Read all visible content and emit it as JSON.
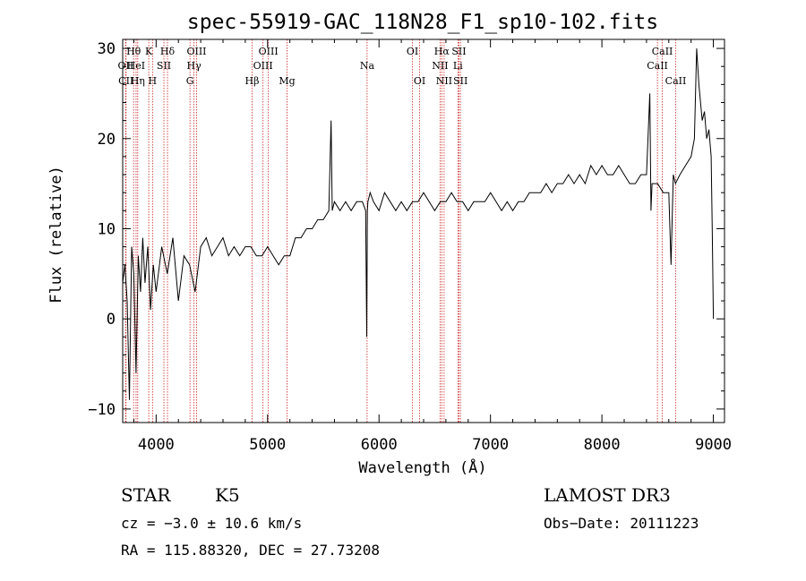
{
  "chart_data": {
    "type": "line",
    "title": "spec-55919-GAC_118N28_F1_sp10-102.fits",
    "xlabel": "Wavelength (Å)",
    "ylabel": "Flux (relative)",
    "xlim": [
      3700,
      9100
    ],
    "ylim": [
      -11.5,
      31
    ],
    "xticks": [
      4000,
      5000,
      6000,
      7000,
      8000,
      9000
    ],
    "yticks": [
      -10,
      0,
      10,
      20,
      30
    ],
    "grid": false,
    "series": [
      {
        "x": [
          3700,
          3720,
          3740,
          3760,
          3780,
          3800,
          3820,
          3840,
          3860,
          3880,
          3900,
          3925,
          3950,
          3975,
          4000,
          4050,
          4100,
          4150,
          4200,
          4250,
          4300,
          4350,
          4400,
          4450,
          4500,
          4550,
          4600,
          4650,
          4700,
          4750,
          4800,
          4850,
          4900,
          4950,
          5000,
          5050,
          5100,
          5150,
          5200,
          5250,
          5300,
          5350,
          5400,
          5450,
          5500,
          5550,
          5570,
          5580,
          5600,
          5650,
          5700,
          5750,
          5800,
          5850,
          5880,
          5890,
          5895,
          5900,
          5920,
          5950,
          6000,
          6050,
          6100,
          6150,
          6200,
          6250,
          6300,
          6350,
          6400,
          6450,
          6500,
          6550,
          6600,
          6650,
          6700,
          6750,
          6800,
          6850,
          6900,
          6950,
          7000,
          7050,
          7100,
          7150,
          7200,
          7250,
          7300,
          7350,
          7400,
          7450,
          7500,
          7550,
          7600,
          7650,
          7700,
          7750,
          7800,
          7850,
          7900,
          7950,
          8000,
          8050,
          8100,
          8150,
          8200,
          8250,
          8300,
          8350,
          8400,
          8430,
          8440,
          8450,
          8500,
          8550,
          8600,
          8620,
          8640,
          8660,
          8700,
          8750,
          8800,
          8830,
          8850,
          8870,
          8900,
          8920,
          8940,
          8960,
          8980,
          8990,
          9000
        ],
        "y": [
          4,
          6,
          2,
          -9,
          8,
          5,
          -6,
          7,
          3,
          9,
          4,
          8,
          1,
          6,
          3,
          8,
          5,
          9,
          2,
          7,
          6,
          3,
          8,
          9,
          7,
          8,
          9,
          7,
          8,
          7,
          8,
          8,
          7,
          7,
          8,
          7,
          6,
          7,
          7,
          9,
          9,
          10,
          10,
          11,
          11,
          12,
          22,
          12,
          13,
          12,
          13,
          12,
          13,
          13,
          12,
          -2,
          12,
          13,
          14,
          13,
          12,
          14,
          13,
          12,
          13,
          12,
          13,
          13,
          14,
          13,
          12,
          13,
          13,
          14,
          13,
          13,
          12,
          13,
          13,
          13,
          14,
          13,
          12,
          13,
          12,
          13,
          13,
          14,
          14,
          14,
          15,
          14,
          15,
          15,
          16,
          15,
          16,
          15,
          17,
          16,
          17,
          16,
          16,
          17,
          16,
          15,
          15,
          16,
          16,
          25,
          12,
          15,
          15,
          14,
          14,
          6,
          16,
          15,
          16,
          17,
          18,
          20,
          30,
          26,
          22,
          23,
          20,
          21,
          18,
          10,
          0
        ]
      }
    ],
    "spectral_lines": [
      {
        "label": "Hθ",
        "x": 3798,
        "row": 0
      },
      {
        "label": "OII",
        "x": 3727,
        "row": 1
      },
      {
        "label": "CII",
        "x": 3730,
        "row": 2
      },
      {
        "label": "HeI",
        "x": 3820,
        "row": 1
      },
      {
        "label": "Hη",
        "x": 3835,
        "row": 2
      },
      {
        "label": "K",
        "x": 3934,
        "row": 0
      },
      {
        "label": "H",
        "x": 3968,
        "row": 2
      },
      {
        "label": "SII",
        "x": 4070,
        "row": 1
      },
      {
        "label": "Hδ",
        "x": 4102,
        "row": 0
      },
      {
        "label": "OIII",
        "x": 4363,
        "row": 0
      },
      {
        "label": "Hγ",
        "x": 4340,
        "row": 1
      },
      {
        "label": "G",
        "x": 4304,
        "row": 2
      },
      {
        "label": "OIII",
        "x": 5007,
        "row": 0
      },
      {
        "label": "OIII",
        "x": 4959,
        "row": 1
      },
      {
        "label": "Hβ",
        "x": 4861,
        "row": 2
      },
      {
        "label": "Mg",
        "x": 5175,
        "row": 2
      },
      {
        "label": "Na",
        "x": 5893,
        "row": 1
      },
      {
        "label": "OI",
        "x": 6300,
        "row": 0
      },
      {
        "label": "OI",
        "x": 6364,
        "row": 2
      },
      {
        "label": "Hα",
        "x": 6563,
        "row": 0
      },
      {
        "label": "NII",
        "x": 6548,
        "row": 1
      },
      {
        "label": "NII",
        "x": 6584,
        "row": 2
      },
      {
        "label": "SII",
        "x": 6717,
        "row": 0
      },
      {
        "label": "Li",
        "x": 6708,
        "row": 1
      },
      {
        "label": "SII",
        "x": 6731,
        "row": 2
      },
      {
        "label": "CaII",
        "x": 8542,
        "row": 0
      },
      {
        "label": "CaII",
        "x": 8498,
        "row": 1
      },
      {
        "label": "CaII",
        "x": 8662,
        "row": 2
      }
    ]
  },
  "info": {
    "object_class": "STAR",
    "subclass": "K5",
    "cz": "cz = −3.0 ± 10.6 km/s",
    "coords": "RA = 115.88320, DEC =  27.73208",
    "survey": "LAMOST DR3",
    "obs_date": "Obs−Date: 20111223"
  }
}
